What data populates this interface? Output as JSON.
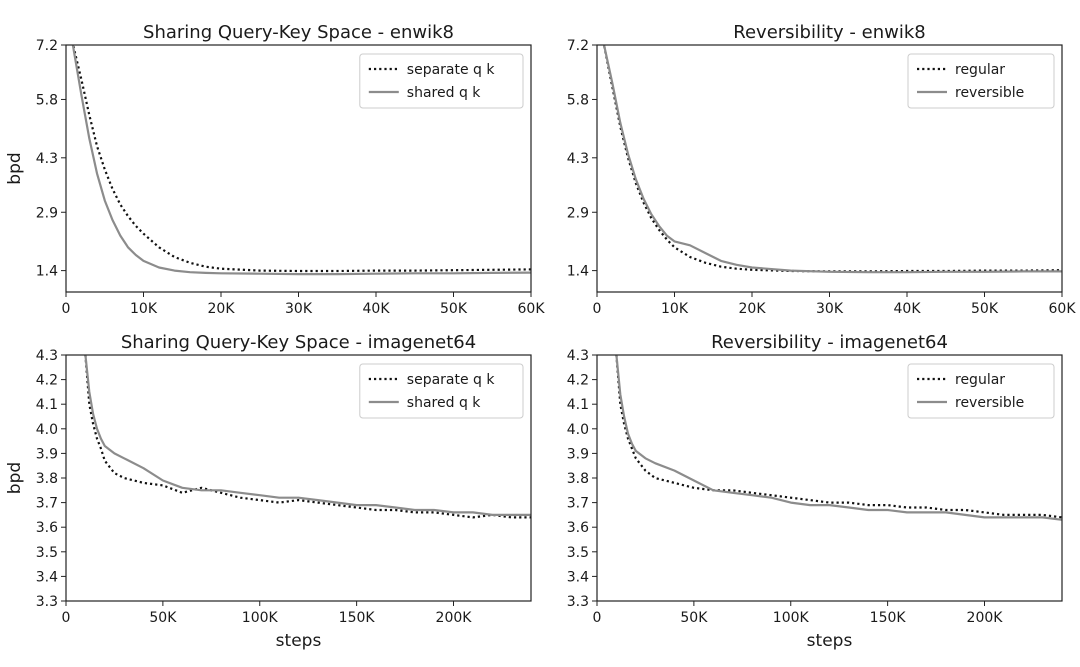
{
  "colors": {
    "series_separate": "#111111",
    "series_shared": "#8c8c8c",
    "axis": "#222222"
  },
  "chart_data": [
    {
      "type": "line",
      "title": "Sharing Query-Key Space - enwik8",
      "xlabel": "",
      "ylabel": "bpd",
      "xlim": [
        0,
        60000
      ],
      "ylim": [
        0.85,
        7.2
      ],
      "xticks": [
        0,
        10000,
        20000,
        30000,
        40000,
        50000,
        60000
      ],
      "xtick_labels": [
        "0",
        "10K",
        "20K",
        "30K",
        "40K",
        "50K",
        "60K"
      ],
      "yticks": [
        1.4,
        2.9,
        4.3,
        5.8,
        7.2
      ],
      "ytick_labels": [
        "1.4",
        "2.9",
        "4.3",
        "5.8",
        "7.2"
      ],
      "legend_position": "top-right",
      "series": [
        {
          "name": "separate q k",
          "style": "dotted",
          "x": [
            800,
            2000,
            3000,
            4000,
            5000,
            6000,
            7000,
            8000,
            9000,
            10000,
            12000,
            14000,
            16000,
            18000,
            20000,
            25000,
            30000,
            35000,
            40000,
            45000,
            50000,
            55000,
            60000
          ],
          "y": [
            7.3,
            6.3,
            5.4,
            4.6,
            4.0,
            3.5,
            3.1,
            2.8,
            2.55,
            2.35,
            2.0,
            1.75,
            1.6,
            1.5,
            1.45,
            1.4,
            1.39,
            1.39,
            1.4,
            1.4,
            1.41,
            1.42,
            1.43
          ]
        },
        {
          "name": "shared q k",
          "style": "solid",
          "x": [
            800,
            2000,
            3000,
            4000,
            5000,
            6000,
            7000,
            8000,
            9000,
            10000,
            12000,
            14000,
            16000,
            18000,
            20000,
            25000,
            30000,
            35000,
            40000,
            45000,
            50000,
            55000,
            60000
          ],
          "y": [
            7.3,
            5.9,
            4.8,
            3.9,
            3.2,
            2.7,
            2.3,
            2.0,
            1.8,
            1.65,
            1.48,
            1.4,
            1.36,
            1.34,
            1.33,
            1.32,
            1.31,
            1.31,
            1.32,
            1.33,
            1.33,
            1.34,
            1.35
          ]
        }
      ]
    },
    {
      "type": "line",
      "title": "Reversibility - enwik8",
      "xlabel": "",
      "ylabel": "",
      "xlim": [
        0,
        60000
      ],
      "ylim": [
        0.85,
        7.2
      ],
      "xticks": [
        0,
        10000,
        20000,
        30000,
        40000,
        50000,
        60000
      ],
      "xtick_labels": [
        "0",
        "10K",
        "20K",
        "30K",
        "40K",
        "50K",
        "60K"
      ],
      "yticks": [
        1.4,
        2.9,
        4.3,
        5.8,
        7.2
      ],
      "ytick_labels": [
        "1.4",
        "2.9",
        "4.3",
        "5.8",
        "7.2"
      ],
      "legend_position": "top-right",
      "series": [
        {
          "name": "regular",
          "style": "dotted",
          "x": [
            800,
            2000,
            3000,
            4000,
            5000,
            6000,
            7000,
            8000,
            9000,
            10000,
            12000,
            14000,
            16000,
            18000,
            20000,
            25000,
            30000,
            35000,
            40000,
            45000,
            50000,
            55000,
            60000
          ],
          "y": [
            7.3,
            6.1,
            5.1,
            4.3,
            3.65,
            3.15,
            2.75,
            2.45,
            2.2,
            2.0,
            1.75,
            1.6,
            1.5,
            1.45,
            1.42,
            1.39,
            1.38,
            1.38,
            1.39,
            1.39,
            1.4,
            1.4,
            1.41
          ]
        },
        {
          "name": "reversible",
          "style": "solid",
          "x": [
            800,
            2000,
            3000,
            4000,
            5000,
            6000,
            7000,
            8000,
            9000,
            10000,
            12000,
            14000,
            16000,
            18000,
            20000,
            25000,
            30000,
            35000,
            40000,
            45000,
            50000,
            55000,
            60000
          ],
          "y": [
            7.3,
            6.2,
            5.2,
            4.4,
            3.75,
            3.25,
            2.85,
            2.55,
            2.3,
            2.15,
            2.05,
            1.85,
            1.65,
            1.55,
            1.48,
            1.4,
            1.37,
            1.36,
            1.36,
            1.37,
            1.37,
            1.38,
            1.38
          ]
        }
      ]
    },
    {
      "type": "line",
      "title": "Sharing Query-Key Space - imagenet64",
      "xlabel": "steps",
      "ylabel": "bpd",
      "xlim": [
        0,
        240000
      ],
      "ylim": [
        3.3,
        4.3
      ],
      "xticks": [
        0,
        50000,
        100000,
        150000,
        200000
      ],
      "xtick_labels": [
        "0",
        "50K",
        "100K",
        "150K",
        "200K"
      ],
      "yticks": [
        3.3,
        3.4,
        3.5,
        3.6,
        3.7,
        3.8,
        3.9,
        4.0,
        4.1,
        4.2,
        4.3
      ],
      "ytick_labels": [
        "3.3",
        "3.4",
        "3.5",
        "3.6",
        "3.7",
        "3.8",
        "3.9",
        "4.0",
        "4.1",
        "4.2",
        "4.3"
      ],
      "legend_position": "top-right",
      "series": [
        {
          "name": "separate q k",
          "style": "dotted",
          "x": [
            10000,
            12000,
            14000,
            16000,
            18000,
            20000,
            25000,
            30000,
            40000,
            50000,
            60000,
            70000,
            80000,
            90000,
            100000,
            110000,
            120000,
            130000,
            140000,
            150000,
            160000,
            170000,
            180000,
            190000,
            200000,
            210000,
            220000,
            230000,
            240000
          ],
          "y": [
            4.3,
            4.1,
            4.02,
            3.96,
            3.92,
            3.87,
            3.82,
            3.8,
            3.78,
            3.77,
            3.74,
            3.76,
            3.74,
            3.72,
            3.71,
            3.7,
            3.71,
            3.7,
            3.69,
            3.68,
            3.67,
            3.67,
            3.66,
            3.66,
            3.65,
            3.64,
            3.65,
            3.64,
            3.64
          ]
        },
        {
          "name": "shared q k",
          "style": "solid",
          "x": [
            10000,
            12000,
            14000,
            16000,
            18000,
            20000,
            25000,
            30000,
            40000,
            50000,
            60000,
            70000,
            80000,
            90000,
            100000,
            110000,
            120000,
            130000,
            140000,
            150000,
            160000,
            170000,
            180000,
            190000,
            200000,
            210000,
            220000,
            230000,
            240000
          ],
          "y": [
            4.3,
            4.15,
            4.06,
            4.0,
            3.96,
            3.93,
            3.9,
            3.88,
            3.84,
            3.79,
            3.76,
            3.75,
            3.75,
            3.74,
            3.73,
            3.72,
            3.72,
            3.71,
            3.7,
            3.69,
            3.69,
            3.68,
            3.67,
            3.67,
            3.66,
            3.66,
            3.65,
            3.65,
            3.65
          ]
        }
      ]
    },
    {
      "type": "line",
      "title": "Reversibility - imagenet64",
      "xlabel": "steps",
      "ylabel": "",
      "xlim": [
        0,
        240000
      ],
      "ylim": [
        3.3,
        4.3
      ],
      "xticks": [
        0,
        50000,
        100000,
        150000,
        200000
      ],
      "xtick_labels": [
        "0",
        "50K",
        "100K",
        "150K",
        "200K"
      ],
      "yticks": [
        3.3,
        3.4,
        3.5,
        3.6,
        3.7,
        3.8,
        3.9,
        4.0,
        4.1,
        4.2,
        4.3
      ],
      "ytick_labels": [
        "3.3",
        "3.4",
        "3.5",
        "3.6",
        "3.7",
        "3.8",
        "3.9",
        "4.0",
        "4.1",
        "4.2",
        "4.3"
      ],
      "legend_position": "top-right",
      "series": [
        {
          "name": "regular",
          "style": "dotted",
          "x": [
            10000,
            12000,
            14000,
            16000,
            18000,
            20000,
            25000,
            30000,
            40000,
            50000,
            60000,
            70000,
            80000,
            90000,
            100000,
            110000,
            120000,
            130000,
            140000,
            150000,
            160000,
            170000,
            180000,
            190000,
            200000,
            210000,
            220000,
            230000,
            240000
          ],
          "y": [
            4.3,
            4.1,
            4.02,
            3.96,
            3.92,
            3.88,
            3.83,
            3.8,
            3.78,
            3.76,
            3.75,
            3.75,
            3.74,
            3.73,
            3.72,
            3.71,
            3.7,
            3.7,
            3.69,
            3.69,
            3.68,
            3.68,
            3.67,
            3.67,
            3.66,
            3.65,
            3.65,
            3.65,
            3.64
          ]
        },
        {
          "name": "reversible",
          "style": "solid",
          "x": [
            10000,
            12000,
            14000,
            16000,
            18000,
            20000,
            25000,
            30000,
            40000,
            50000,
            60000,
            70000,
            80000,
            90000,
            100000,
            110000,
            120000,
            130000,
            140000,
            150000,
            160000,
            170000,
            180000,
            190000,
            200000,
            210000,
            220000,
            230000,
            240000
          ],
          "y": [
            4.3,
            4.14,
            4.05,
            3.98,
            3.94,
            3.91,
            3.88,
            3.86,
            3.83,
            3.79,
            3.75,
            3.74,
            3.73,
            3.72,
            3.7,
            3.69,
            3.69,
            3.68,
            3.67,
            3.67,
            3.66,
            3.66,
            3.66,
            3.65,
            3.64,
            3.64,
            3.64,
            3.64,
            3.63
          ]
        }
      ]
    }
  ]
}
